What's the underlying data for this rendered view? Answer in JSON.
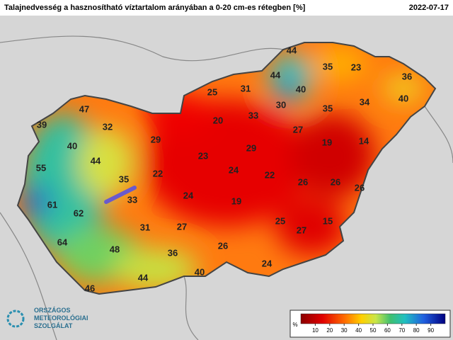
{
  "header": {
    "title": "Talajnedvesség a hasznosítható víztartalom arányában a 0-20 cm-es rétegben [%]",
    "date": "2022-07-17"
  },
  "stations": [
    44,
    35,
    23,
    36,
    25,
    31,
    44,
    40,
    30,
    35,
    34,
    40,
    47,
    39,
    32,
    33,
    20,
    27,
    29,
    19,
    14,
    40,
    29,
    23,
    44,
    55,
    24,
    22,
    22,
    35,
    26,
    26,
    26,
    24,
    19,
    33,
    61,
    62,
    25,
    15,
    31,
    27,
    27,
    64,
    48,
    26,
    36,
    24,
    40,
    44,
    46
  ],
  "legend": {
    "unit": "%",
    "ticks": [
      10,
      20,
      30,
      40,
      50,
      60,
      70,
      80,
      90
    ]
  },
  "logo": {
    "line1": "ORSZÁGOS",
    "line2": "METEOROLÓGIAI",
    "line3": "SZOLGÁLAT"
  }
}
